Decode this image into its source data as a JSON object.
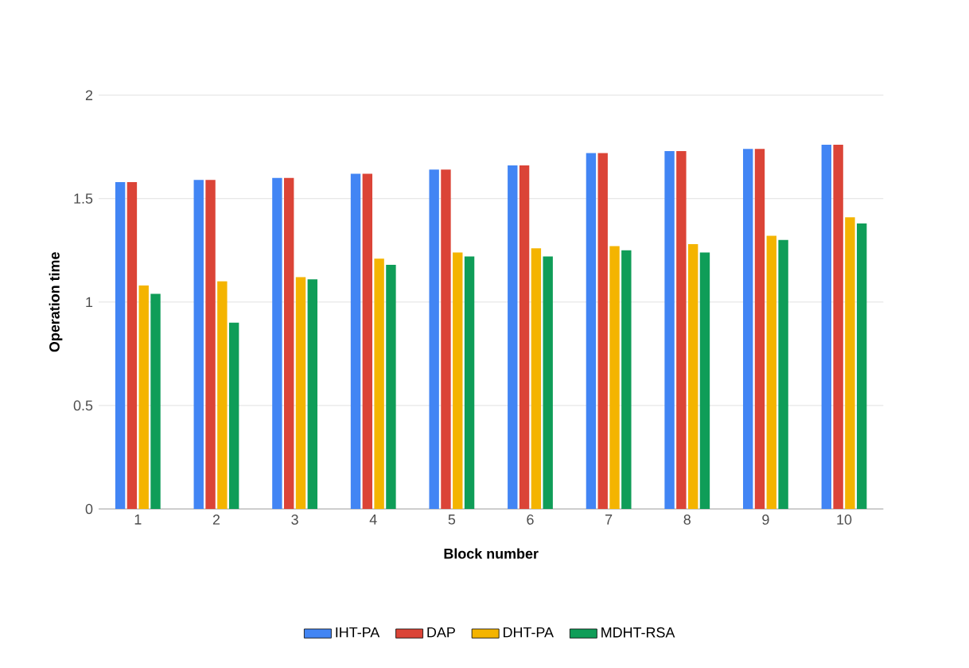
{
  "chart_data": {
    "type": "bar",
    "xlabel": "Block number",
    "ylabel": "Operation time",
    "categories": [
      "1",
      "2",
      "3",
      "4",
      "5",
      "6",
      "7",
      "8",
      "9",
      "10"
    ],
    "series": [
      {
        "name": "IHT-PA",
        "color": "#4285f4",
        "values": [
          1.58,
          1.59,
          1.6,
          1.62,
          1.64,
          1.66,
          1.72,
          1.73,
          1.74,
          1.76
        ]
      },
      {
        "name": "DAP",
        "color": "#db4437",
        "values": [
          1.58,
          1.59,
          1.6,
          1.62,
          1.64,
          1.66,
          1.72,
          1.73,
          1.74,
          1.76
        ]
      },
      {
        "name": "DHT-PA",
        "color": "#f4b400",
        "values": [
          1.08,
          1.1,
          1.12,
          1.21,
          1.24,
          1.26,
          1.27,
          1.28,
          1.32,
          1.41
        ]
      },
      {
        "name": "MDHT-RSA",
        "color": "#0f9d58",
        "values": [
          1.04,
          0.9,
          1.11,
          1.18,
          1.22,
          1.22,
          1.25,
          1.24,
          1.3,
          1.38
        ]
      }
    ],
    "ylim": [
      0,
      2
    ],
    "yticks": [
      0,
      0.5,
      1,
      1.5,
      2
    ],
    "grid": "y",
    "legend": "bottom"
  }
}
